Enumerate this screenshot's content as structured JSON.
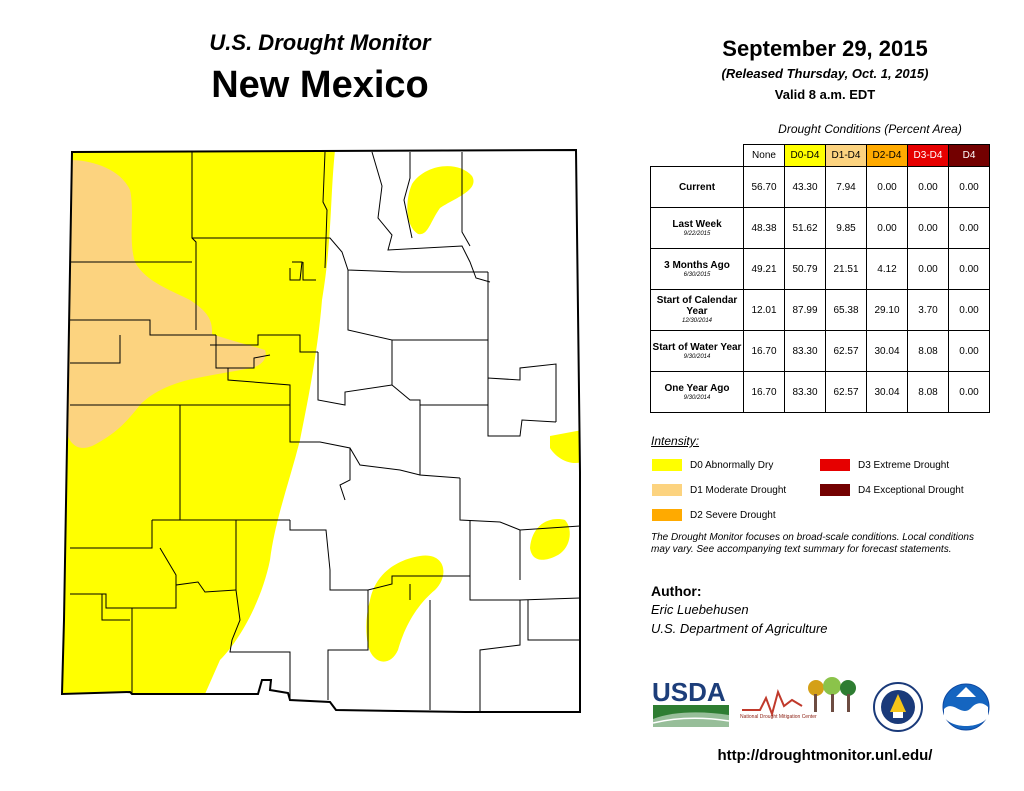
{
  "header": {
    "subtitle": "U.S. Drought Monitor",
    "title": "New Mexico",
    "date": "September 29, 2015",
    "released": "(Released Thursday, Oct. 1, 2015)",
    "valid": "Valid 8 a.m. EDT"
  },
  "table": {
    "caption": "Drought Conditions (Percent Area)",
    "columns": [
      {
        "label": "None",
        "color": "#ffffff"
      },
      {
        "label": "D0-D4",
        "color": "#ffff00"
      },
      {
        "label": "D1-D4",
        "color": "#fcd37f"
      },
      {
        "label": "D2-D4",
        "color": "#ffaa00"
      },
      {
        "label": "D3-D4",
        "color": "#e60000"
      },
      {
        "label": "D4",
        "color": "#730000"
      }
    ],
    "rows": [
      {
        "label": "Current",
        "sub": "",
        "values": [
          "56.70",
          "43.30",
          "7.94",
          "0.00",
          "0.00",
          "0.00"
        ]
      },
      {
        "label": "Last Week",
        "sub": "9/22/2015",
        "values": [
          "48.38",
          "51.62",
          "9.85",
          "0.00",
          "0.00",
          "0.00"
        ]
      },
      {
        "label": "3 Months Ago",
        "sub": "6/30/2015",
        "values": [
          "49.21",
          "50.79",
          "21.51",
          "4.12",
          "0.00",
          "0.00"
        ]
      },
      {
        "label": "Start of Calendar Year",
        "sub": "12/30/2014",
        "values": [
          "12.01",
          "87.99",
          "65.38",
          "29.10",
          "3.70",
          "0.00"
        ]
      },
      {
        "label": "Start of Water Year",
        "sub": "9/30/2014",
        "values": [
          "16.70",
          "83.30",
          "62.57",
          "30.04",
          "8.08",
          "0.00"
        ]
      },
      {
        "label": "One Year Ago",
        "sub": "9/30/2014",
        "values": [
          "16.70",
          "83.30",
          "62.57",
          "30.04",
          "8.08",
          "0.00"
        ]
      }
    ]
  },
  "legend": {
    "title": "Intensity:",
    "items": [
      {
        "label": "D0 Abnormally Dry",
        "color": "#ffff00"
      },
      {
        "label": "D1 Moderate Drought",
        "color": "#fcd37f"
      },
      {
        "label": "D2 Severe Drought",
        "color": "#ffaa00"
      },
      {
        "label": "D3 Extreme Drought",
        "color": "#e60000"
      },
      {
        "label": "D4 Exceptional Drought",
        "color": "#730000"
      }
    ]
  },
  "note": "The Drought Monitor focuses on broad-scale conditions. Local conditions may vary. See accompanying text summary for forecast statements.",
  "author": {
    "label": "Author:",
    "name": "Eric Luebehusen",
    "org": "U.S. Department of Agriculture"
  },
  "logos": {
    "usda": "USDA",
    "ndmc": "National Drought Mitigation Center"
  },
  "url": "http://droughtmonitor.unl.edu/"
}
